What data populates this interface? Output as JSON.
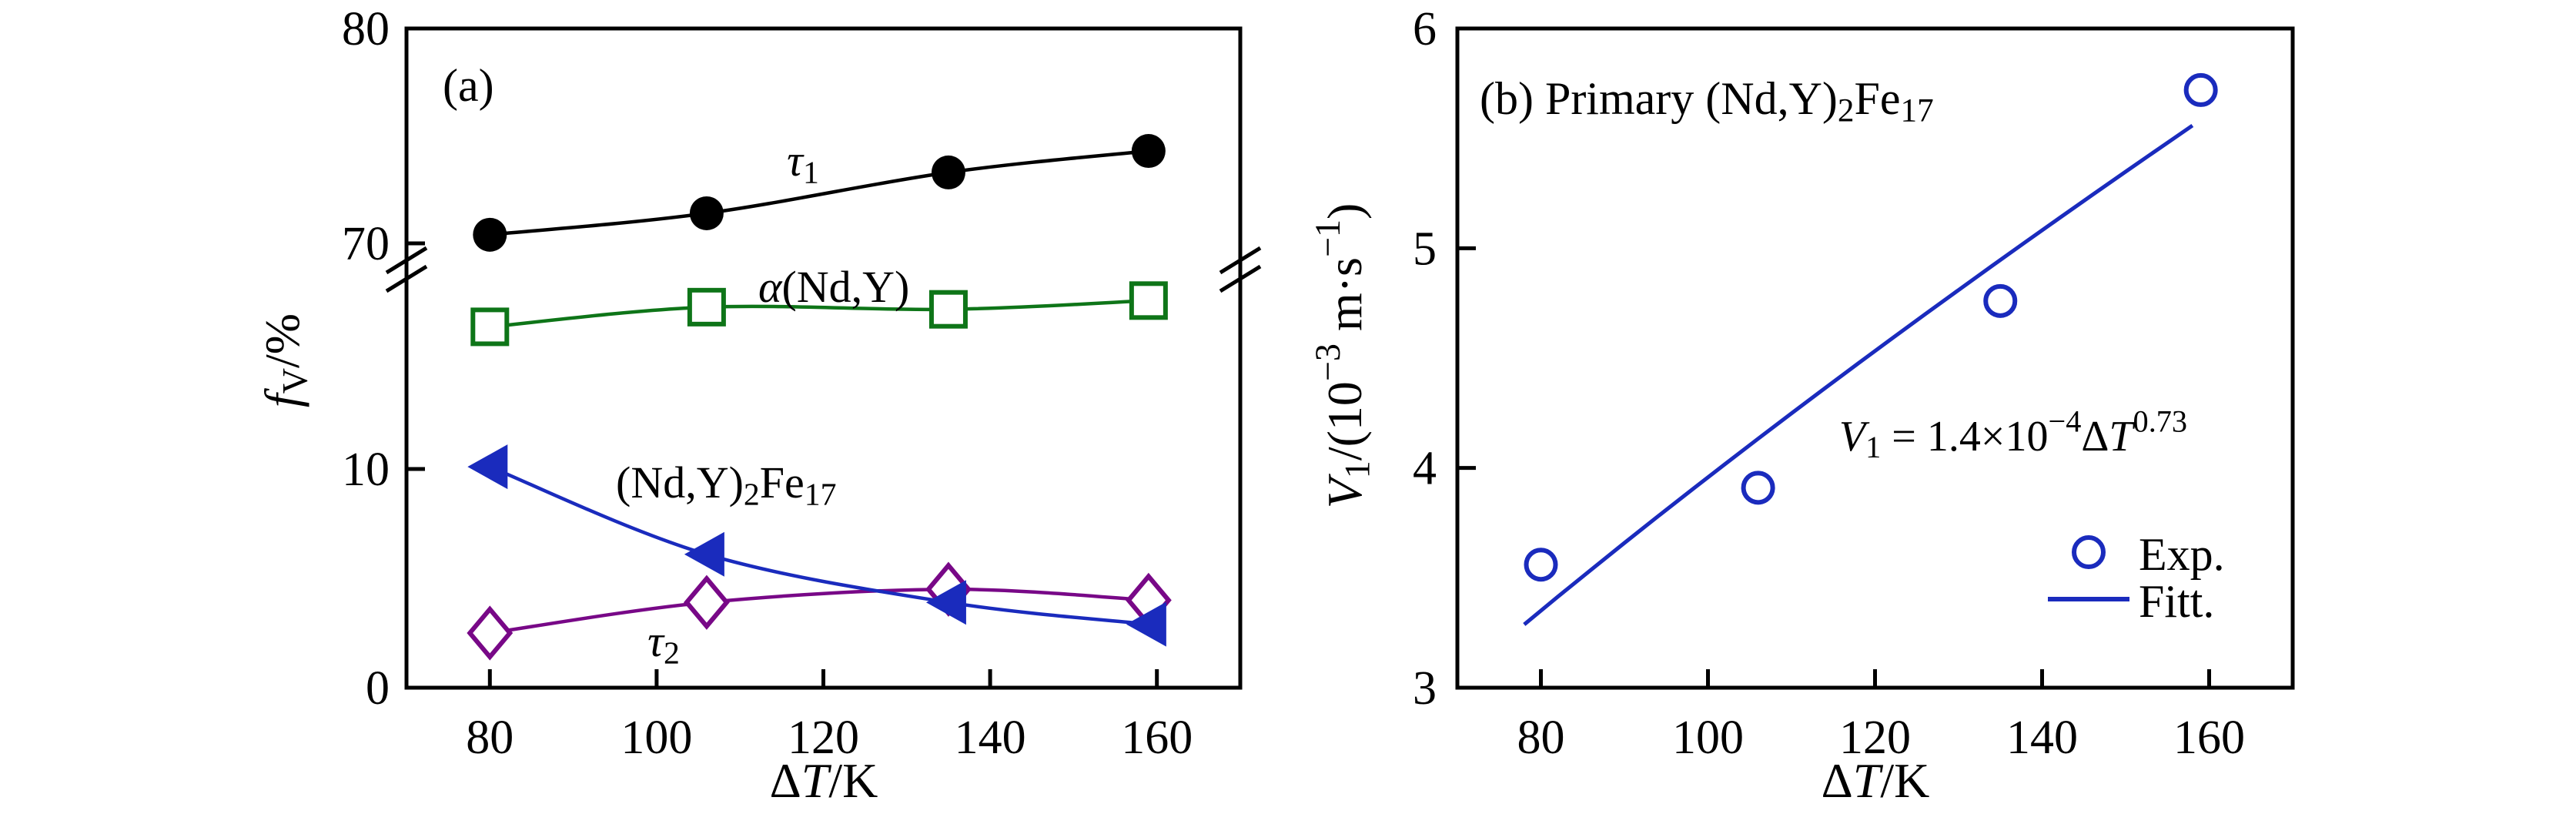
{
  "figure": {
    "background": "#ffffff",
    "accent_blue": "#1a2bbd",
    "accent_green": "#0e7518",
    "accent_purple": "#780887",
    "ink": "#000000"
  },
  "chart_data": [
    {
      "type": "line",
      "panel_tag_tokens": [
        {
          "t": "(a)"
        }
      ],
      "xlabel_tokens": [
        {
          "t": "Δ"
        },
        {
          "t": "T",
          "i": 1
        },
        {
          "t": "/K"
        }
      ],
      "ylabel_tokens": [
        {
          "t": "f",
          "i": 1
        },
        {
          "t": "V",
          "sub": 1
        },
        {
          "t": "/%"
        }
      ],
      "xlim": [
        70,
        170
      ],
      "x_ticks": [
        80,
        100,
        120,
        140,
        160
      ],
      "y_axis_broken": {
        "lower_ticks": [
          0,
          10
        ],
        "upper_ticks": [
          70,
          80
        ],
        "lower_lim": [
          0,
          20
        ],
        "upper_lim": [
          68.3,
          80
        ],
        "break_between": [
          20,
          68.3
        ]
      },
      "x": [
        80,
        106,
        135,
        159
      ],
      "series": [
        {
          "id": "alpha-ndy",
          "label_tokens": [
            {
              "t": "α",
              "i": 1
            },
            {
              "t": "(Nd,Y)"
            }
          ],
          "marker": "open-square",
          "color": "#0e7518",
          "segment": "lower",
          "values": [
            16.5,
            17.4,
            17.3,
            17.7
          ]
        },
        {
          "id": "tau1",
          "label_tokens": [
            {
              "t": "τ",
              "i": 1
            },
            {
              "t": "1",
              "sub": 1
            }
          ],
          "marker": "filled-circle",
          "color": "#000000",
          "segment": "upper",
          "values": [
            70.4,
            71.4,
            73.3,
            74.3
          ]
        },
        {
          "id": "tau2",
          "label_tokens": [
            {
              "t": "τ",
              "i": 1
            },
            {
              "t": "2",
              "sub": 1
            }
          ],
          "marker": "open-diamond",
          "color": "#780887",
          "segment": "lower",
          "values": [
            2.5,
            3.9,
            4.5,
            4.0
          ]
        },
        {
          "id": "ndy2fe17",
          "label_tokens": [
            {
              "t": "(Nd,Y)"
            },
            {
              "t": "2",
              "sub": 1
            },
            {
              "t": "Fe"
            },
            {
              "t": "17",
              "sub": 1
            }
          ],
          "marker": "filled-left-triangle",
          "color": "#1a2bbd",
          "segment": "lower",
          "values": [
            10.1,
            6.1,
            3.9,
            2.9
          ]
        }
      ]
    },
    {
      "type": "scatter",
      "panel_title_tokens": [
        {
          "t": "(b) Primary (Nd,Y)"
        },
        {
          "t": "2",
          "sub": 1
        },
        {
          "t": "Fe"
        },
        {
          "t": "17",
          "sub": 1
        }
      ],
      "xlabel_tokens": [
        {
          "t": "Δ"
        },
        {
          "t": "T",
          "i": 1
        },
        {
          "t": "/K"
        }
      ],
      "ylabel_tokens": [
        {
          "t": "V",
          "i": 1
        },
        {
          "t": "1",
          "sub": 1
        },
        {
          "t": "/(10"
        },
        {
          "t": "−3",
          "sup": 1
        },
        {
          "t": " m·s"
        },
        {
          "t": "−1",
          "sup": 1
        },
        {
          "t": ")"
        }
      ],
      "xlim": [
        70,
        170
      ],
      "ylim": [
        3,
        6
      ],
      "x_ticks": [
        80,
        100,
        120,
        140,
        160
      ],
      "y_ticks": [
        3,
        4,
        5,
        6
      ],
      "equation_tokens": [
        {
          "t": "V",
          "i": 1
        },
        {
          "t": "1",
          "sub": 1
        },
        {
          "t": " = 1.4×10"
        },
        {
          "t": "−4",
          "sup": 1
        },
        {
          "t": "Δ"
        },
        {
          "t": "T",
          "i": 1
        },
        {
          "t": "0.73",
          "sup": 1
        }
      ],
      "exp": {
        "x": [
          80,
          106,
          135,
          159
        ],
        "y": [
          3.56,
          3.91,
          4.76,
          5.72
        ]
      },
      "fit": {
        "coefficient_label": "1.4×10−4",
        "exponent": 0.73,
        "coefficient": 0.14,
        "x_range": [
          78,
          158
        ]
      },
      "legend": [
        {
          "label": "Exp.",
          "marker": "open-circle"
        },
        {
          "label": "Fitt.",
          "marker": "line"
        }
      ],
      "color": "#1a2bbd"
    }
  ]
}
